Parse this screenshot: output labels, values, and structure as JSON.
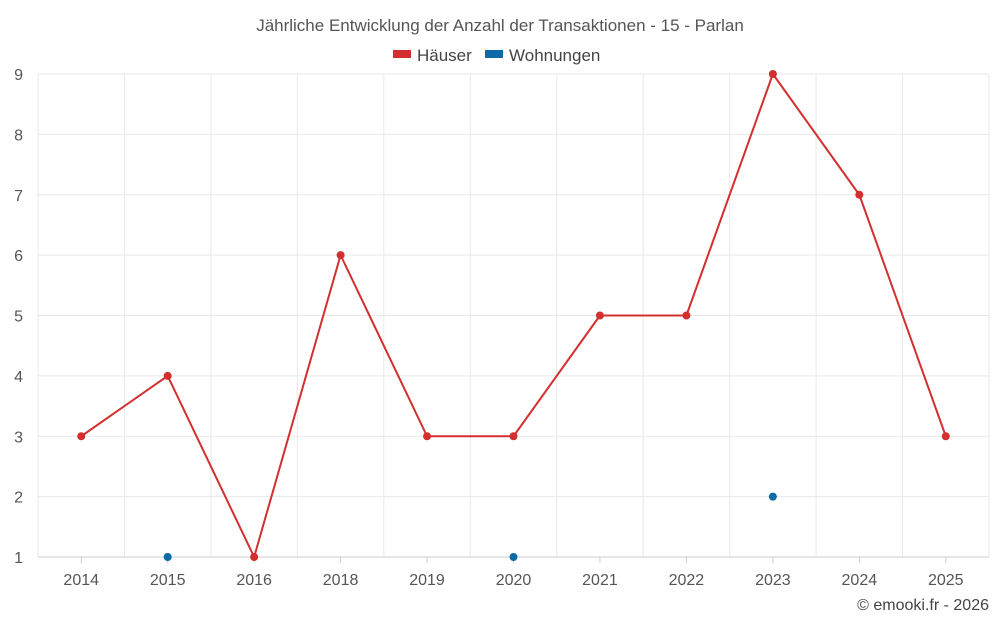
{
  "chart_data": {
    "type": "line",
    "title": "Jährliche Entwicklung der Anzahl der Transaktionen - 15 - Parlan",
    "xlabel": "",
    "ylabel": "",
    "categories": [
      "2014",
      "2015",
      "2016",
      "2018",
      "2019",
      "2020",
      "2021",
      "2022",
      "2023",
      "2024",
      "2025"
    ],
    "yticks": [
      "1",
      "2",
      "3",
      "4",
      "5",
      "6",
      "7",
      "8",
      "9"
    ],
    "ylim": [
      1,
      9
    ],
    "grid": true,
    "legend": "top-center",
    "series": [
      {
        "name": "Häuser",
        "color": "#d32f2f",
        "style": "line-with-markers",
        "values": [
          3,
          4,
          1,
          6,
          3,
          3,
          5,
          5,
          9,
          7,
          3
        ]
      },
      {
        "name": "Wohnungen",
        "color": "#0b6ba8",
        "style": "markers",
        "values": [
          null,
          1,
          null,
          null,
          null,
          1,
          null,
          null,
          2,
          null,
          null
        ]
      }
    ]
  },
  "footer": "© emooki.fr - 2026"
}
